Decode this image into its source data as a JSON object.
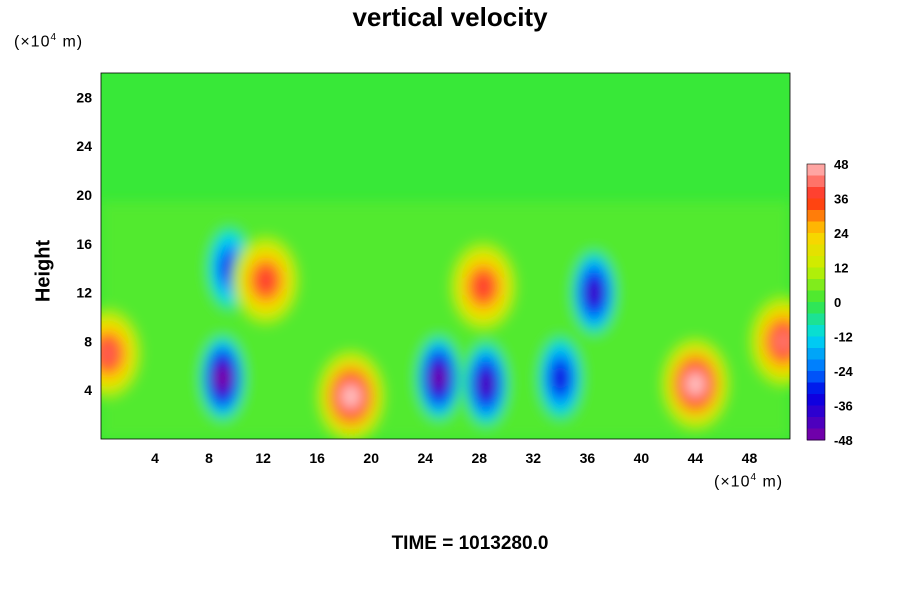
{
  "chart_data": {
    "type": "heatmap",
    "title": "vertical velocity",
    "ylabel": "Height",
    "xlabel": "",
    "x_unit_label": "(×10",
    "unit_exponent": "4",
    "unit_suffix": " m)",
    "y_unit_label": "(×10",
    "xlim": [
      0,
      51
    ],
    "ylim": [
      0,
      30
    ],
    "x_ticks": [
      "4",
      "8",
      "12",
      "16",
      "20",
      "24",
      "28",
      "32",
      "36",
      "40",
      "44",
      "48"
    ],
    "y_ticks": [
      "4",
      "8",
      "12",
      "16",
      "20",
      "24",
      "28"
    ],
    "colorbar": {
      "range": [
        -48,
        48
      ],
      "ticks": [
        "48",
        "36",
        "24",
        "12",
        "0",
        "-12",
        "-24",
        "-36",
        "-48"
      ]
    },
    "features": [
      {
        "x": 0.5,
        "y": 7,
        "value": 40
      },
      {
        "x": 9.0,
        "y": 5,
        "value": -48
      },
      {
        "x": 9.5,
        "y": 14,
        "value": -30
      },
      {
        "x": 12.2,
        "y": 13,
        "value": 38
      },
      {
        "x": 18.5,
        "y": 3.5,
        "value": 48
      },
      {
        "x": 25.0,
        "y": 5,
        "value": -46
      },
      {
        "x": 28.3,
        "y": 12.5,
        "value": 38
      },
      {
        "x": 28.5,
        "y": 4.5,
        "value": -42
      },
      {
        "x": 34.0,
        "y": 5,
        "value": -34
      },
      {
        "x": 36.5,
        "y": 12,
        "value": -40
      },
      {
        "x": 44.0,
        "y": 4.5,
        "value": 48
      },
      {
        "x": 50.5,
        "y": 8,
        "value": 42
      }
    ]
  },
  "footer": {
    "time_label": "TIME = 1013280.0"
  }
}
